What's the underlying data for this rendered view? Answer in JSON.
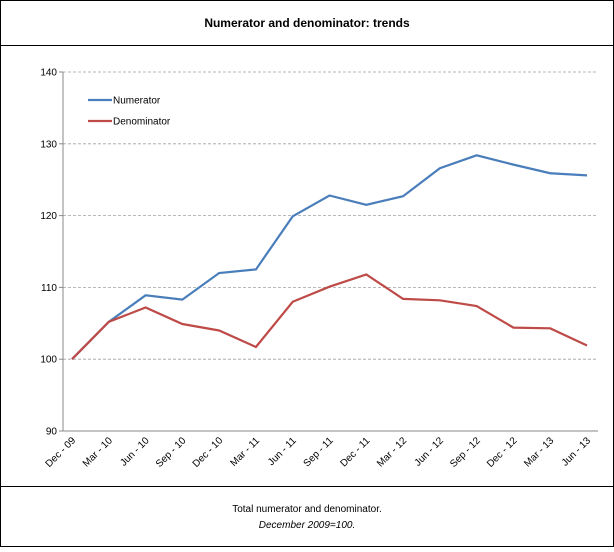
{
  "chart_data": {
    "type": "line",
    "title": "Numerator and denominator: trends",
    "categories": [
      "Dec - 09",
      "Mar - 10",
      "Jun - 10",
      "Sep - 10",
      "Dec - 10",
      "Mar - 11",
      "Jun - 11",
      "Sep - 11",
      "Dec - 11",
      "Mar - 12",
      "Jun - 12",
      "Sep - 12",
      "Dec - 12",
      "Mar - 13",
      "Jun - 13"
    ],
    "series": [
      {
        "name": "Numerator",
        "color": "#4a7ebb",
        "values": [
          100,
          105.2,
          108.9,
          108.3,
          112.0,
          112.5,
          119.9,
          122.8,
          121.5,
          122.7,
          126.6,
          128.4,
          127.1,
          125.9,
          125.6
        ]
      },
      {
        "name": "Denominator",
        "color": "#be4b48",
        "values": [
          100,
          105.2,
          107.2,
          104.9,
          104.0,
          101.7,
          108.0,
          110.1,
          111.8,
          108.4,
          108.2,
          107.4,
          104.4,
          104.3,
          101.9
        ]
      }
    ],
    "ylim": [
      90,
      140
    ],
    "yticks": [
      90,
      100,
      110,
      120,
      130,
      140
    ],
    "grid": true,
    "legend": "upper-left",
    "caption": "Total numerator and denominator.",
    "caption_note": "December 2009=100."
  }
}
